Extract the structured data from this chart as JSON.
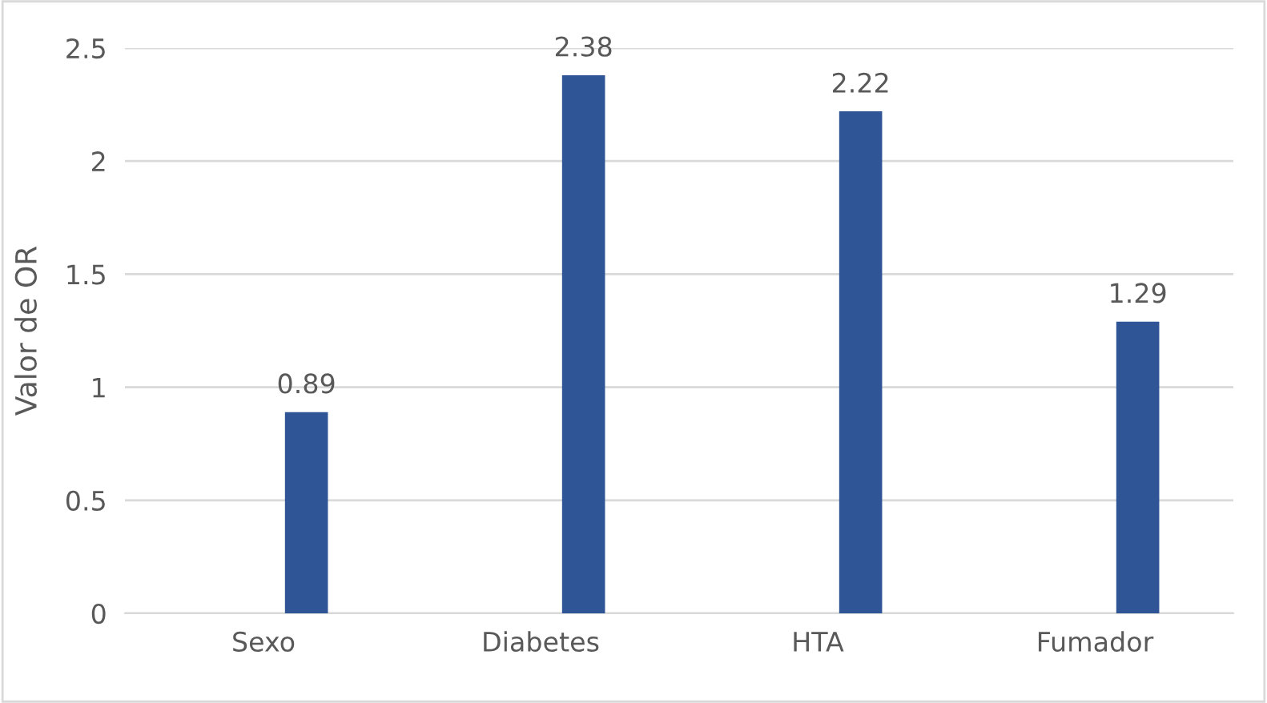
{
  "chart_data": {
    "type": "bar",
    "ylabel": "Valor de OR",
    "categories": [
      "Sexo",
      "Diabetes",
      "HTA",
      "Fumador"
    ],
    "series": [
      {
        "values": [
          null,
          null,
          null,
          null
        ]
      },
      {
        "color": "#2f5597",
        "values": [
          0.89,
          2.38,
          2.22,
          1.29
        ]
      }
    ],
    "ylim": [
      0,
      2.5
    ],
    "yticks": [
      0,
      0.5,
      1,
      1.5,
      2,
      2.5
    ],
    "grid": "y",
    "data_labels": true
  }
}
